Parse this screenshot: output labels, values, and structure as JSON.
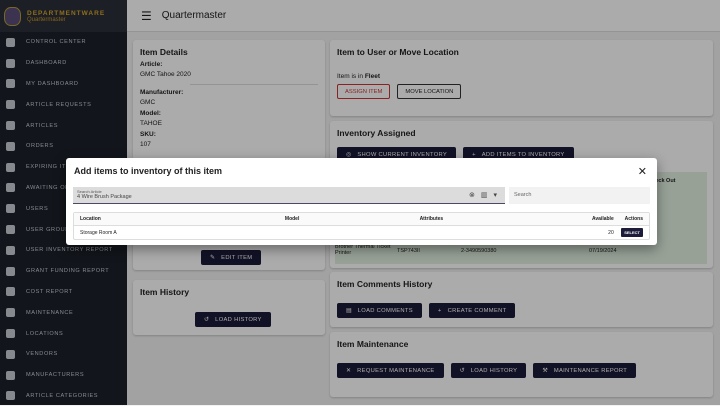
{
  "brand": {
    "title": "DEPARTMENTWARE",
    "subtitle": "Quartermaster"
  },
  "sidebar": {
    "items": [
      "CONTROL CENTER",
      "DASHBOARD",
      "MY DASHBOARD",
      "ARTICLE REQUESTS",
      "ARTICLES",
      "ORDERS",
      "EXPIRING ITEMS",
      "AWAITING OFFICER",
      "USERS",
      "USER GROUPS",
      "USER INVENTORY REPORT",
      "GRANT FUNDING REPORT",
      "COST REPORT",
      "MAINTENANCE",
      "LOCATIONS",
      "VENDORS",
      "MANUFACTURERS",
      "ARTICLE CATEGORIES"
    ]
  },
  "header": {
    "title": "Quartermaster"
  },
  "details": {
    "title": "Item Details",
    "article_label": "Article:",
    "article": "GMC Tahoe 2020",
    "manufacturer_label": "Manufacturer:",
    "manufacturer": "GMC",
    "model_label": "Model:",
    "model": "TAHOE",
    "sku_label": "SKU:",
    "sku": "107",
    "edit": "EDIT ITEM"
  },
  "history": {
    "title": "Item History",
    "load": "LOAD HISTORY"
  },
  "move": {
    "title": "Item to User or Move Location",
    "status_prefix": "Item is in ",
    "status": "Fleet",
    "assign": "ASSIGN ITEM",
    "move": "MOVE LOCATION"
  },
  "inventory": {
    "title": "Inventory Assigned",
    "show": "SHOW CURRENT INVENTORY",
    "add": "ADD ITEMS TO INVENTORY",
    "col_checkout": "Check Out",
    "row": {
      "name": "Brother Thermal Ticket Printer",
      "model": "TSP743II",
      "serial": "2-3490590380",
      "date": "07/19/2024"
    }
  },
  "comments": {
    "title": "Item Comments History",
    "load": "LOAD COMMENTS",
    "create": "CREATE COMMENT"
  },
  "maintenance": {
    "title": "Item Maintenance",
    "request": "REQUEST MAINTENANCE",
    "load": "LOAD HISTORY",
    "report": "MAINTENANCE REPORT"
  },
  "modal": {
    "title": "Add items to inventory of this item",
    "search_label": "Search Article",
    "search_value": "4 Wire Brush Package",
    "search_placeholder": "Search",
    "columns": [
      "Location",
      "Model",
      "Attributes",
      "Available",
      "Actions"
    ],
    "rows": [
      {
        "location": "Storage Room A",
        "model": "",
        "attributes": "",
        "available": "20",
        "action": "SELECT"
      }
    ]
  }
}
